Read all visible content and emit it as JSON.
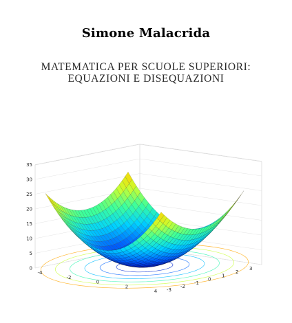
{
  "cover": {
    "author": "Simone Malacrida",
    "title_line1": "MATEMATICA PER SCUOLE SUPERIORI:",
    "title_line2": "EQUAZIONI E DISEQUAZIONI"
  },
  "chart_data": {
    "type": "surface3d",
    "function": "z = x^2 + y^2",
    "title": "",
    "xlabel": "",
    "ylabel": "",
    "zlabel": "",
    "xlim": [
      -4,
      4
    ],
    "ylim": [
      -3,
      3
    ],
    "zlim": [
      0,
      35
    ],
    "z_ticks": [
      "0",
      "5",
      "10",
      "15",
      "20",
      "25",
      "30",
      "35"
    ],
    "x_ticks": [
      "-4",
      "-2",
      "0",
      "2",
      "4"
    ],
    "y_ticks": [
      "-3",
      "-2",
      "-1",
      "0",
      "1",
      "2",
      "3"
    ],
    "colormap": [
      "#0000b4",
      "#0064ff",
      "#00d2ff",
      "#3cff9c",
      "#c8ff32",
      "#ffd200",
      "#ff6400",
      "#c80000"
    ],
    "contour_levels": [
      2,
      5,
      9,
      14,
      20,
      27
    ],
    "grid": true
  }
}
